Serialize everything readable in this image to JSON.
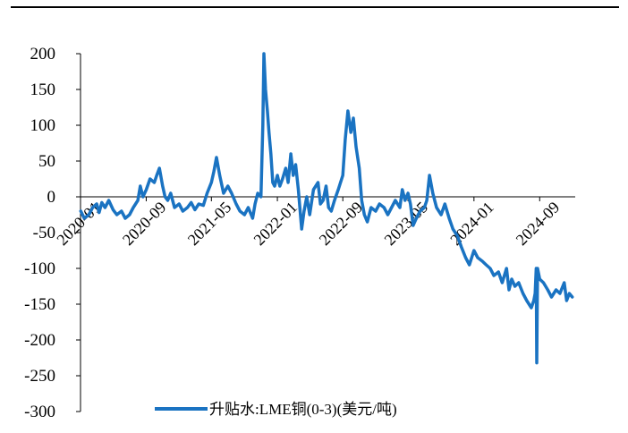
{
  "chart_data": {
    "type": "line",
    "title": "",
    "xlabel": "",
    "ylabel": "",
    "ylim": [
      -300,
      200
    ],
    "yticks": [
      200,
      150,
      100,
      50,
      0,
      -50,
      -100,
      -150,
      -200,
      -250,
      -300
    ],
    "xtick_labels": [
      "2020-01",
      "2020-09",
      "2021-05",
      "2022-01",
      "2022-09",
      "2023-05",
      "2024-01",
      "2024-09"
    ],
    "grid": false,
    "legend_position": "bottom-center",
    "series": [
      {
        "name": "升贴水:LME铜(0-3)(美元/吨)",
        "color": "#1a73c2",
        "points": [
          [
            "2020-01-02",
            -20
          ],
          [
            "2020-01-15",
            -30
          ],
          [
            "2020-02-01",
            -25
          ],
          [
            "2020-02-15",
            -15
          ],
          [
            "2020-03-01",
            -10
          ],
          [
            "2020-03-10",
            -22
          ],
          [
            "2020-03-20",
            -8
          ],
          [
            "2020-04-01",
            -15
          ],
          [
            "2020-04-15",
            -5
          ],
          [
            "2020-05-01",
            -18
          ],
          [
            "2020-05-15",
            -25
          ],
          [
            "2020-06-01",
            -20
          ],
          [
            "2020-06-15",
            -30
          ],
          [
            "2020-07-01",
            -25
          ],
          [
            "2020-07-15",
            -15
          ],
          [
            "2020-08-01",
            -5
          ],
          [
            "2020-08-10",
            15
          ],
          [
            "2020-08-20",
            0
          ],
          [
            "2020-09-01",
            10
          ],
          [
            "2020-09-15",
            25
          ],
          [
            "2020-10-01",
            20
          ],
          [
            "2020-10-10",
            30
          ],
          [
            "2020-10-20",
            40
          ],
          [
            "2020-11-01",
            15
          ],
          [
            "2020-11-10",
            0
          ],
          [
            "2020-11-20",
            -5
          ],
          [
            "2020-12-01",
            5
          ],
          [
            "2020-12-15",
            -15
          ],
          [
            "2021-01-01",
            -10
          ],
          [
            "2021-01-15",
            -20
          ],
          [
            "2021-02-01",
            -15
          ],
          [
            "2021-02-15",
            -8
          ],
          [
            "2021-03-01",
            -18
          ],
          [
            "2021-03-15",
            -10
          ],
          [
            "2021-04-01",
            -12
          ],
          [
            "2021-04-15",
            5
          ],
          [
            "2021-05-01",
            20
          ],
          [
            "2021-05-10",
            35
          ],
          [
            "2021-05-20",
            55
          ],
          [
            "2021-06-01",
            30
          ],
          [
            "2021-06-15",
            5
          ],
          [
            "2021-07-01",
            15
          ],
          [
            "2021-07-15",
            5
          ],
          [
            "2021-08-01",
            -10
          ],
          [
            "2021-08-15",
            -20
          ],
          [
            "2021-09-01",
            -25
          ],
          [
            "2021-09-15",
            -15
          ],
          [
            "2021-10-01",
            -30
          ],
          [
            "2021-10-10",
            -10
          ],
          [
            "2021-10-20",
            5
          ],
          [
            "2021-11-01",
            0
          ],
          [
            "2021-11-08",
            100
          ],
          [
            "2021-11-12",
            200
          ],
          [
            "2021-11-18",
            150
          ],
          [
            "2021-11-25",
            120
          ],
          [
            "2021-12-01",
            90
          ],
          [
            "2021-12-08",
            60
          ],
          [
            "2021-12-15",
            20
          ],
          [
            "2021-12-22",
            15
          ],
          [
            "2022-01-01",
            30
          ],
          [
            "2022-01-10",
            15
          ],
          [
            "2022-01-20",
            25
          ],
          [
            "2022-02-01",
            40
          ],
          [
            "2022-02-10",
            20
          ],
          [
            "2022-02-20",
            60
          ],
          [
            "2022-03-01",
            30
          ],
          [
            "2022-03-10",
            45
          ],
          [
            "2022-03-20",
            10
          ],
          [
            "2022-04-01",
            -45
          ],
          [
            "2022-04-10",
            -20
          ],
          [
            "2022-04-20",
            0
          ],
          [
            "2022-05-01",
            -25
          ],
          [
            "2022-05-15",
            10
          ],
          [
            "2022-06-01",
            20
          ],
          [
            "2022-06-10",
            -10
          ],
          [
            "2022-06-20",
            -5
          ],
          [
            "2022-07-01",
            15
          ],
          [
            "2022-07-10",
            -15
          ],
          [
            "2022-07-20",
            -20
          ],
          [
            "2022-08-01",
            -5
          ],
          [
            "2022-08-15",
            10
          ],
          [
            "2022-09-01",
            30
          ],
          [
            "2022-09-10",
            80
          ],
          [
            "2022-09-20",
            120
          ],
          [
            "2022-10-01",
            90
          ],
          [
            "2022-10-10",
            110
          ],
          [
            "2022-10-20",
            70
          ],
          [
            "2022-11-01",
            40
          ],
          [
            "2022-11-10",
            -5
          ],
          [
            "2022-11-20",
            -25
          ],
          [
            "2022-12-01",
            -35
          ],
          [
            "2022-12-15",
            -15
          ],
          [
            "2023-01-01",
            -20
          ],
          [
            "2023-01-15",
            -10
          ],
          [
            "2023-02-01",
            -15
          ],
          [
            "2023-02-15",
            -25
          ],
          [
            "2023-03-01",
            -15
          ],
          [
            "2023-03-15",
            -5
          ],
          [
            "2023-04-01",
            -15
          ],
          [
            "2023-04-10",
            10
          ],
          [
            "2023-04-20",
            -5
          ],
          [
            "2023-05-01",
            5
          ],
          [
            "2023-05-10",
            -10
          ],
          [
            "2023-05-20",
            -40
          ],
          [
            "2023-06-01",
            -30
          ],
          [
            "2023-06-15",
            -20
          ],
          [
            "2023-07-01",
            -15
          ],
          [
            "2023-07-10",
            -5
          ],
          [
            "2023-07-20",
            30
          ],
          [
            "2023-08-01",
            5
          ],
          [
            "2023-08-15",
            -15
          ],
          [
            "2023-09-01",
            -25
          ],
          [
            "2023-09-15",
            -10
          ],
          [
            "2023-10-01",
            -30
          ],
          [
            "2023-10-15",
            -45
          ],
          [
            "2023-11-01",
            -55
          ],
          [
            "2023-11-15",
            -70
          ],
          [
            "2023-12-01",
            -85
          ],
          [
            "2023-12-15",
            -95
          ],
          [
            "2024-01-01",
            -75
          ],
          [
            "2024-01-15",
            -85
          ],
          [
            "2024-02-01",
            -90
          ],
          [
            "2024-02-15",
            -95
          ],
          [
            "2024-03-01",
            -100
          ],
          [
            "2024-03-15",
            -110
          ],
          [
            "2024-04-01",
            -105
          ],
          [
            "2024-04-15",
            -120
          ],
          [
            "2024-05-01",
            -100
          ],
          [
            "2024-05-10",
            -130
          ],
          [
            "2024-05-20",
            -115
          ],
          [
            "2024-06-01",
            -125
          ],
          [
            "2024-06-15",
            -120
          ],
          [
            "2024-07-01",
            -135
          ],
          [
            "2024-07-15",
            -145
          ],
          [
            "2024-08-01",
            -155
          ],
          [
            "2024-08-10",
            -145
          ],
          [
            "2024-08-15",
            -135
          ],
          [
            "2024-08-19",
            -100
          ],
          [
            "2024-08-21",
            -232
          ],
          [
            "2024-08-24",
            -100
          ],
          [
            "2024-09-01",
            -115
          ],
          [
            "2024-09-15",
            -120
          ],
          [
            "2024-10-01",
            -130
          ],
          [
            "2024-10-15",
            -140
          ],
          [
            "2024-11-01",
            -130
          ],
          [
            "2024-11-15",
            -135
          ],
          [
            "2024-12-01",
            -120
          ],
          [
            "2024-12-10",
            -145
          ],
          [
            "2024-12-20",
            -135
          ],
          [
            "2024-12-31",
            -140
          ]
        ]
      }
    ]
  }
}
